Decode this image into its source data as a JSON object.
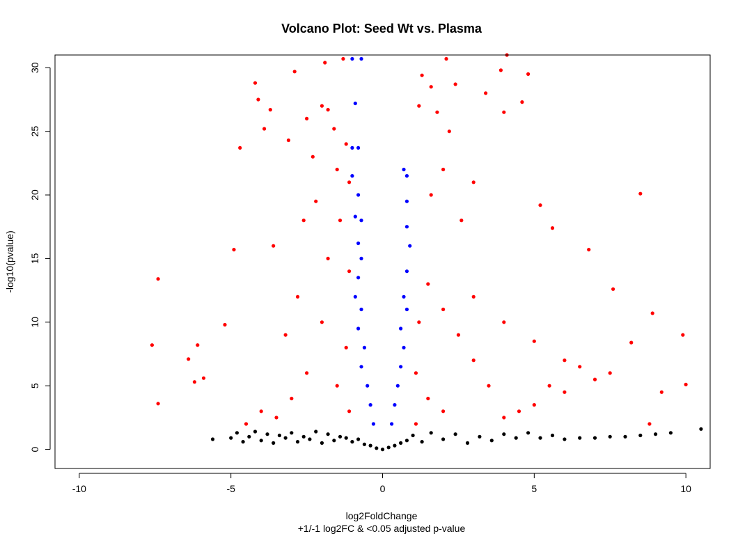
{
  "chart_data": {
    "type": "scatter",
    "title": "Volcano Plot: Seed Wt vs. Plasma",
    "xlabel": "log2FoldChange",
    "xlabel_sub": "+1/-1 log2FC & <0.05 adjusted p-value",
    "ylabel": "-log10(pvalue)",
    "xlim": [
      -10.8,
      10.8
    ],
    "ylim": [
      -1.5,
      31
    ],
    "xticks": [
      -10,
      -5,
      0,
      5,
      10
    ],
    "yticks": [
      0,
      5,
      10,
      15,
      20,
      25,
      30
    ],
    "grid": false,
    "legend": "none",
    "colors": {
      "not_significant": "#000000",
      "significant_small_fc": "#0000ff",
      "significant_large_fc": "#ff0000"
    },
    "series": [
      {
        "color": "#000000",
        "points": [
          [
            -5.6,
            0.8
          ],
          [
            -5.0,
            0.9
          ],
          [
            -4.8,
            1.3
          ],
          [
            -4.6,
            0.6
          ],
          [
            -4.4,
            1.0
          ],
          [
            -4.2,
            1.4
          ],
          [
            -4.0,
            0.7
          ],
          [
            -3.8,
            1.2
          ],
          [
            -3.6,
            0.5
          ],
          [
            -3.4,
            1.1
          ],
          [
            -3.2,
            0.9
          ],
          [
            -3.0,
            1.3
          ],
          [
            -2.8,
            0.6
          ],
          [
            -2.6,
            1.0
          ],
          [
            -2.4,
            0.8
          ],
          [
            -2.2,
            1.4
          ],
          [
            -2.0,
            0.5
          ],
          [
            -1.8,
            1.2
          ],
          [
            -1.6,
            0.7
          ],
          [
            -1.4,
            1.0
          ],
          [
            -1.2,
            0.9
          ],
          [
            -1.0,
            0.6
          ],
          [
            -0.8,
            0.8
          ],
          [
            -0.6,
            0.4
          ],
          [
            -0.4,
            0.3
          ],
          [
            -0.2,
            0.1
          ],
          [
            0.0,
            0.0
          ],
          [
            0.2,
            0.15
          ],
          [
            0.4,
            0.3
          ],
          [
            0.6,
            0.5
          ],
          [
            0.8,
            0.7
          ],
          [
            1.0,
            1.1
          ],
          [
            1.3,
            0.6
          ],
          [
            1.6,
            1.3
          ],
          [
            2.0,
            0.8
          ],
          [
            2.4,
            1.2
          ],
          [
            2.8,
            0.5
          ],
          [
            3.2,
            1.0
          ],
          [
            3.6,
            0.7
          ],
          [
            4.0,
            1.2
          ],
          [
            4.4,
            0.9
          ],
          [
            4.8,
            1.3
          ],
          [
            5.2,
            0.9
          ],
          [
            5.6,
            1.1
          ],
          [
            6.0,
            0.8
          ],
          [
            6.5,
            0.9
          ],
          [
            7.0,
            0.9
          ],
          [
            7.5,
            1.0
          ],
          [
            8.0,
            1.0
          ],
          [
            8.5,
            1.1
          ],
          [
            9.0,
            1.2
          ],
          [
            9.5,
            1.3
          ],
          [
            10.5,
            1.6
          ]
        ]
      },
      {
        "color": "#0000ff",
        "points": [
          [
            -1.0,
            30.7
          ],
          [
            -0.7,
            30.7
          ],
          [
            -0.9,
            27.2
          ],
          [
            -1.0,
            23.7
          ],
          [
            -0.8,
            23.7
          ],
          [
            -1.0,
            21.5
          ],
          [
            -0.8,
            20.0
          ],
          [
            -0.9,
            18.3
          ],
          [
            -0.7,
            18.0
          ],
          [
            -0.8,
            16.2
          ],
          [
            -0.7,
            15.0
          ],
          [
            -0.8,
            13.5
          ],
          [
            -0.9,
            12.0
          ],
          [
            -0.7,
            11.0
          ],
          [
            -0.8,
            9.5
          ],
          [
            -0.6,
            8.0
          ],
          [
            -0.7,
            6.5
          ],
          [
            -0.5,
            5.0
          ],
          [
            -0.4,
            3.5
          ],
          [
            -0.3,
            2.0
          ],
          [
            0.3,
            2.0
          ],
          [
            0.4,
            3.5
          ],
          [
            0.5,
            5.0
          ],
          [
            0.6,
            6.5
          ],
          [
            0.7,
            8.0
          ],
          [
            0.6,
            9.5
          ],
          [
            0.8,
            11.0
          ],
          [
            0.7,
            12.0
          ],
          [
            0.8,
            14.0
          ],
          [
            0.9,
            16.0
          ],
          [
            0.8,
            17.5
          ],
          [
            0.8,
            19.5
          ],
          [
            0.8,
            21.5
          ],
          [
            0.7,
            22.0
          ]
        ]
      },
      {
        "color": "#ff0000",
        "points": [
          [
            -7.6,
            8.2
          ],
          [
            -7.4,
            13.4
          ],
          [
            -7.4,
            3.6
          ],
          [
            -6.4,
            7.1
          ],
          [
            -6.2,
            5.3
          ],
          [
            -6.1,
            8.2
          ],
          [
            -5.9,
            5.6
          ],
          [
            -5.2,
            9.8
          ],
          [
            -4.9,
            15.7
          ],
          [
            -4.7,
            23.7
          ],
          [
            -4.2,
            28.8
          ],
          [
            -4.1,
            27.5
          ],
          [
            -3.9,
            25.2
          ],
          [
            -3.7,
            26.7
          ],
          [
            -3.6,
            16.0
          ],
          [
            -3.1,
            24.3
          ],
          [
            -2.9,
            29.7
          ],
          [
            -2.6,
            18.0
          ],
          [
            -2.5,
            26.0
          ],
          [
            -2.3,
            23.0
          ],
          [
            -2.0,
            27.0
          ],
          [
            -1.9,
            30.4
          ],
          [
            -1.8,
            26.7
          ],
          [
            -1.6,
            25.2
          ],
          [
            -1.5,
            22.0
          ],
          [
            -1.3,
            30.7
          ],
          [
            -1.2,
            24.0
          ],
          [
            -1.1,
            21.0
          ],
          [
            -1.1,
            14.0
          ],
          [
            -1.2,
            8.0
          ],
          [
            -1.1,
            3.0
          ],
          [
            -1.5,
            5.0
          ],
          [
            -2.0,
            10.0
          ],
          [
            -2.5,
            6.0
          ],
          [
            -3.0,
            4.0
          ],
          [
            -3.5,
            2.5
          ],
          [
            -4.0,
            3.0
          ],
          [
            -4.5,
            2.0
          ],
          [
            -2.8,
            12.0
          ],
          [
            -3.2,
            9.0
          ],
          [
            -1.8,
            15.0
          ],
          [
            -1.4,
            18.0
          ],
          [
            -2.2,
            19.5
          ],
          [
            1.2,
            27.0
          ],
          [
            1.3,
            29.4
          ],
          [
            1.6,
            28.5
          ],
          [
            1.8,
            26.5
          ],
          [
            2.1,
            30.7
          ],
          [
            2.2,
            25.0
          ],
          [
            2.4,
            28.7
          ],
          [
            2.0,
            22.0
          ],
          [
            1.6,
            20.0
          ],
          [
            2.6,
            18.0
          ],
          [
            3.0,
            21.0
          ],
          [
            3.4,
            28.0
          ],
          [
            3.9,
            29.8
          ],
          [
            4.0,
            26.5
          ],
          [
            4.1,
            31.0
          ],
          [
            4.6,
            27.3
          ],
          [
            4.8,
            29.5
          ],
          [
            5.2,
            19.2
          ],
          [
            5.6,
            17.4
          ],
          [
            6.8,
            15.7
          ],
          [
            7.6,
            12.6
          ],
          [
            8.5,
            20.1
          ],
          [
            8.2,
            8.4
          ],
          [
            8.9,
            10.7
          ],
          [
            9.9,
            9.0
          ],
          [
            10.0,
            5.1
          ],
          [
            9.2,
            4.5
          ],
          [
            8.8,
            2.0
          ],
          [
            7.5,
            6.0
          ],
          [
            6.5,
            6.5
          ],
          [
            6.0,
            4.5
          ],
          [
            5.5,
            5.0
          ],
          [
            5.0,
            3.5
          ],
          [
            4.5,
            3.0
          ],
          [
            4.0,
            2.5
          ],
          [
            3.5,
            5.0
          ],
          [
            3.0,
            7.0
          ],
          [
            2.5,
            9.0
          ],
          [
            2.0,
            11.0
          ],
          [
            1.5,
            13.0
          ],
          [
            1.2,
            10.0
          ],
          [
            1.1,
            6.0
          ],
          [
            1.1,
            2.0
          ],
          [
            1.5,
            4.0
          ],
          [
            2.0,
            3.0
          ],
          [
            3.0,
            12.0
          ],
          [
            4.0,
            10.0
          ],
          [
            5.0,
            8.5
          ],
          [
            6.0,
            7.0
          ],
          [
            7.0,
            5.5
          ]
        ]
      }
    ]
  }
}
